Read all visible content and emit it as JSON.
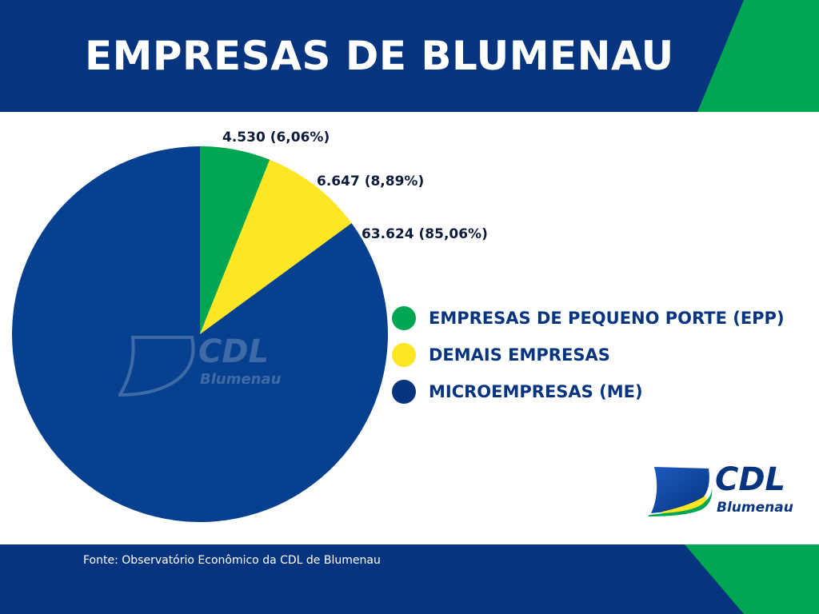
{
  "header": {
    "title": "EMPRESAS DE BLUMENAU"
  },
  "chart_data": {
    "type": "pie",
    "title": "EMPRESAS DE BLUMENAU",
    "categories": [
      "EMPRESAS DE PEQUENO PORTE (EPP)",
      "DEMAIS EMPRESAS",
      "MICROEMPRESAS (ME)"
    ],
    "values": [
      4530,
      6647,
      63624
    ],
    "percentages": [
      6.06,
      8.89,
      85.06
    ],
    "data_labels": [
      "4.530 (6,06%)",
      "6.647 (8,89%)",
      "63.624 (85,06%)"
    ],
    "colors": [
      "#00a651",
      "#ffe624",
      "#07408f"
    ],
    "legend_position": "right"
  },
  "footer": {
    "source": "Fonte:  Observatório Econômico da CDL de Blumenau"
  },
  "logo": {
    "cdl": "CDL",
    "city": "Blumenau"
  },
  "colors": {
    "brand_blue": "#06347f",
    "brand_green": "#00a651",
    "brand_yellow": "#ffe624"
  }
}
